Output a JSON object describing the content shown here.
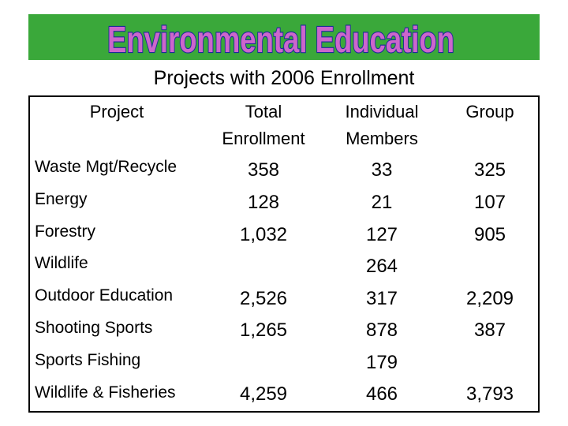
{
  "banner": {
    "title": "Environmental Education",
    "color": "#3aa83a"
  },
  "subtitle": "Projects with 2006 Enrollment",
  "table": {
    "headers": {
      "project": "Project",
      "total_1": "Total",
      "total_2": "Enrollment",
      "individual_1": "Individual",
      "individual_2": "Members",
      "group": "Group"
    },
    "rows": [
      {
        "project": "Waste Mgt/Recycle",
        "total": "358",
        "individual": "33",
        "group": "325"
      },
      {
        "project": "Energy",
        "total": "128",
        "individual": "21",
        "group": "107"
      },
      {
        "project": "Forestry",
        "total": "1,032",
        "individual": "127",
        "group": "905"
      },
      {
        "project": "Wildlife",
        "total": "",
        "individual": "264",
        "group": ""
      },
      {
        "project": "Outdoor Education",
        "total": "2,526",
        "individual": "317",
        "group": "2,209"
      },
      {
        "project": "Shooting Sports",
        "total": "1,265",
        "individual": "878",
        "group": "387"
      },
      {
        "project": "Sports Fishing",
        "total": "",
        "individual": "179",
        "group": ""
      },
      {
        "project": "Wildlife & Fisheries",
        "total": "4,259",
        "individual": "466",
        "group": "3,793"
      }
    ]
  }
}
